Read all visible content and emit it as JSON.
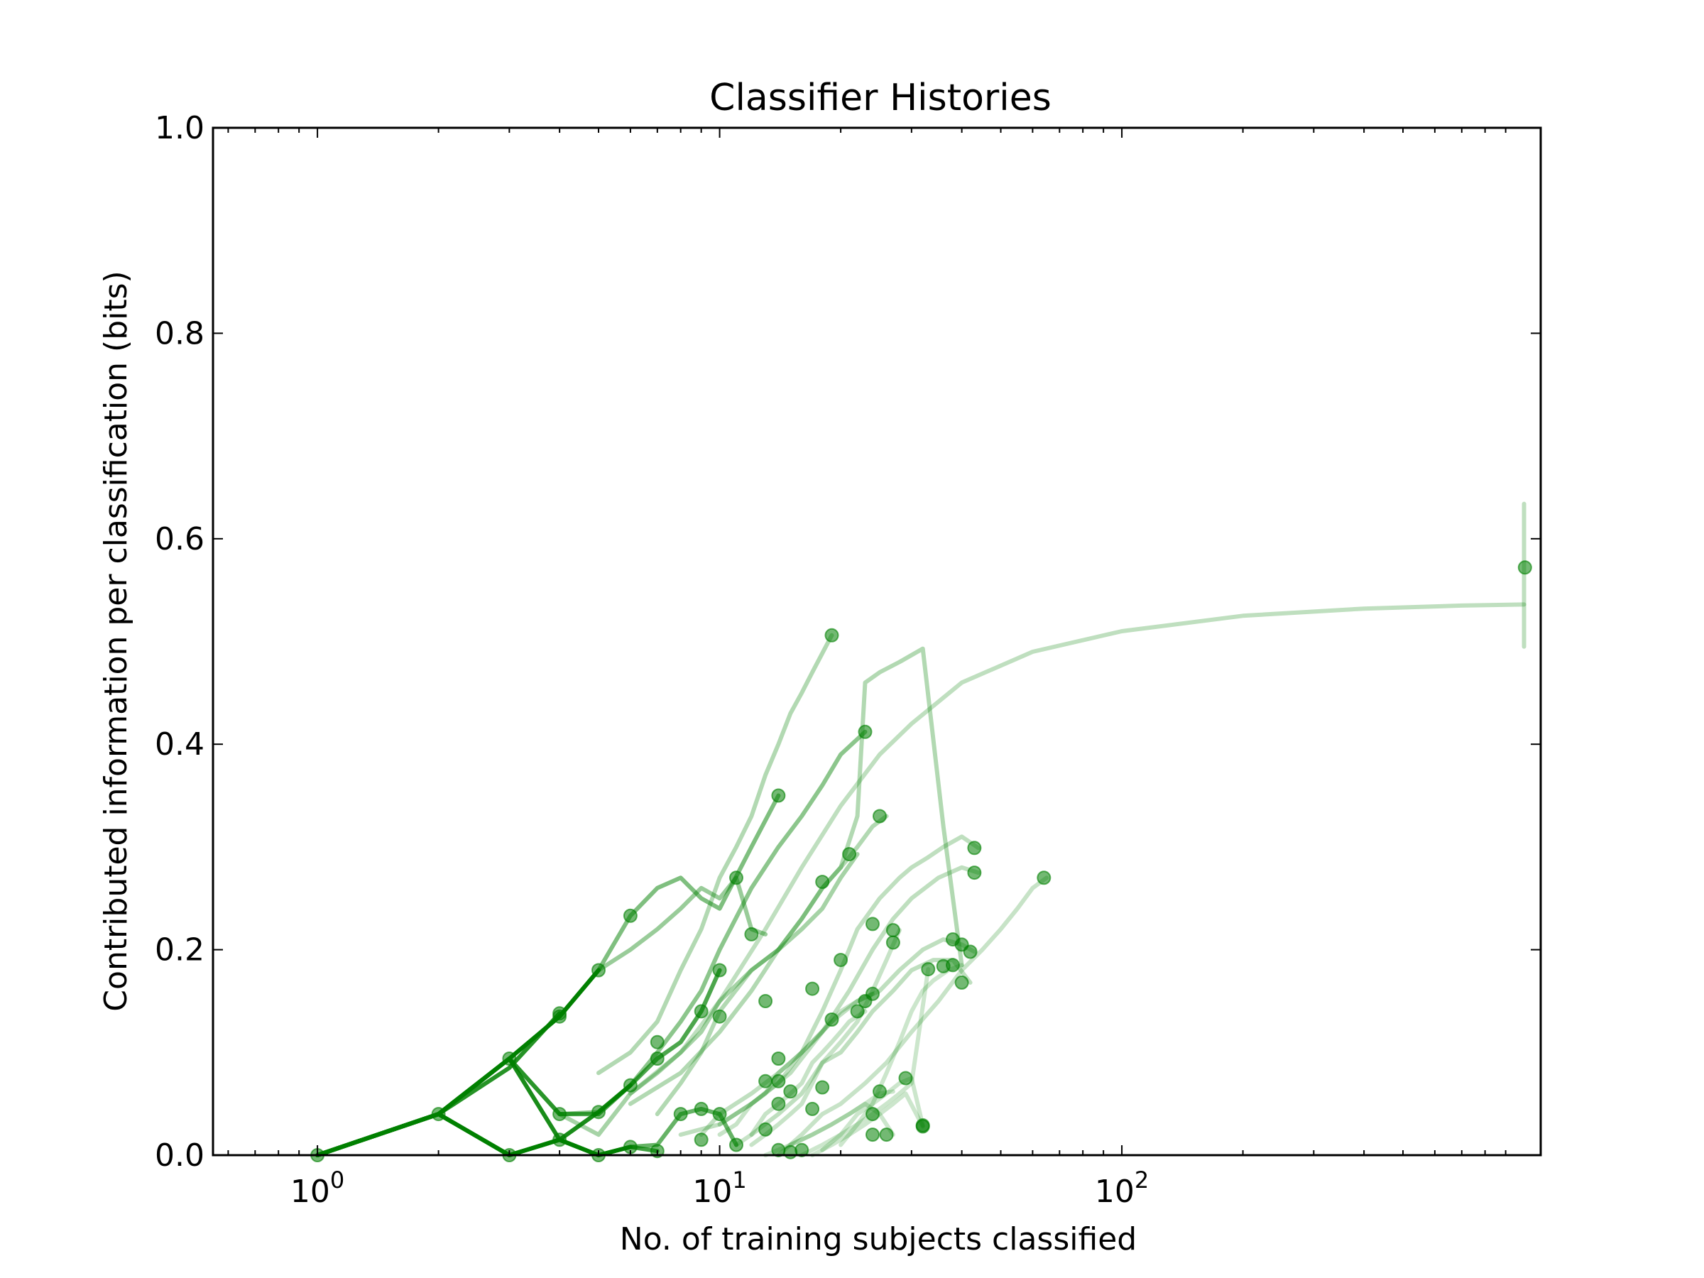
{
  "chart_data": {
    "type": "line",
    "title": "Classifier Histories",
    "xlabel": "No. of training subjects classified",
    "ylabel": "Contributed information per classification (bits)",
    "xscale": "log",
    "xlim": [
      0.55,
      1100
    ],
    "ylim": [
      0,
      1.0
    ],
    "grid": false,
    "color": "#008000",
    "yticks": [
      0.0,
      0.2,
      0.4,
      0.6,
      0.8,
      1.0
    ],
    "ytick_labels": [
      "0.0",
      "0.2",
      "0.4",
      "0.6",
      "0.8",
      "1.0"
    ],
    "xticks": [
      1,
      10,
      100
    ],
    "xtick_labels": [
      {
        "base": "10",
        "exp": "0"
      },
      {
        "base": "10",
        "exp": "1"
      },
      {
        "base": "10",
        "exp": "2"
      }
    ],
    "series": [
      {
        "alpha": 1.0,
        "x": [
          1,
          2,
          3,
          4,
          5
        ],
        "y": [
          0.0,
          0.04,
          0.094,
          0.135,
          0.18
        ]
      },
      {
        "alpha": 1.0,
        "x": [
          1,
          2,
          3,
          4,
          5,
          6
        ],
        "y": [
          0.0,
          0.04,
          0.0,
          0.015,
          0.0,
          0.008
        ]
      },
      {
        "alpha": 0.9,
        "x": [
          1,
          2,
          3,
          4,
          5,
          6
        ],
        "y": [
          0.0,
          0.04,
          0.094,
          0.015,
          0.042,
          0.068
        ]
      },
      {
        "alpha": 0.85,
        "x": [
          1,
          2,
          3,
          4
        ],
        "y": [
          0.0,
          0.04,
          0.085,
          0.138
        ]
      },
      {
        "alpha": 0.75,
        "x": [
          1,
          2,
          3,
          4,
          5,
          6,
          7
        ],
        "y": [
          0.0,
          0.04,
          0.0,
          0.015,
          0.0,
          0.008,
          0.004
        ]
      },
      {
        "alpha": 0.7,
        "x": [
          1,
          2,
          3,
          4,
          5,
          6,
          7,
          8,
          9,
          10
        ],
        "y": [
          0.0,
          0.04,
          0.094,
          0.04,
          0.04,
          0.068,
          0.094,
          0.11,
          0.14,
          0.18
        ]
      },
      {
        "alpha": 0.6,
        "x": [
          1,
          2,
          3,
          4,
          5,
          6,
          7,
          8,
          9,
          10,
          11
        ],
        "y": [
          0.0,
          0.04,
          0.0,
          0.015,
          0.0,
          0.008,
          0.01,
          0.04,
          0.045,
          0.04,
          0.01
        ]
      },
      {
        "alpha": 0.5,
        "x": [
          1,
          2,
          3,
          4,
          5,
          6,
          7,
          8,
          9,
          10,
          12,
          14
        ],
        "y": [
          0.0,
          0.04,
          0.094,
          0.135,
          0.18,
          0.233,
          0.26,
          0.27,
          0.25,
          0.24,
          0.3,
          0.35
        ]
      },
      {
        "alpha": 0.45,
        "x": [
          1,
          2,
          3,
          4,
          5,
          6,
          7,
          8,
          9,
          10,
          12,
          14,
          16,
          18,
          20,
          23
        ],
        "y": [
          0.0,
          0.04,
          0.094,
          0.04,
          0.042,
          0.068,
          0.1,
          0.13,
          0.16,
          0.2,
          0.26,
          0.3,
          0.33,
          0.36,
          0.39,
          0.412
        ]
      },
      {
        "alpha": 0.4,
        "x": [
          4,
          5,
          6,
          7,
          8,
          9,
          10,
          11,
          12,
          13
        ],
        "y": [
          0.135,
          0.18,
          0.2,
          0.22,
          0.24,
          0.26,
          0.25,
          0.27,
          0.22,
          0.215
        ]
      },
      {
        "alpha": 0.35,
        "x": [
          4,
          5,
          6,
          7,
          8,
          9,
          10,
          12,
          14,
          16,
          18,
          20,
          22
        ],
        "y": [
          0.04,
          0.02,
          0.06,
          0.08,
          0.1,
          0.12,
          0.15,
          0.18,
          0.2,
          0.22,
          0.24,
          0.27,
          0.293
        ]
      },
      {
        "alpha": 0.3,
        "x": [
          5,
          6,
          7,
          8,
          9,
          10,
          11,
          12,
          13,
          14,
          15,
          16,
          17,
          19
        ],
        "y": [
          0.08,
          0.1,
          0.13,
          0.18,
          0.22,
          0.27,
          0.3,
          0.33,
          0.37,
          0.4,
          0.43,
          0.45,
          0.47,
          0.506
        ]
      },
      {
        "alpha": 0.3,
        "x": [
          6,
          8,
          10,
          12,
          14,
          16,
          18,
          20,
          22,
          24,
          26
        ],
        "y": [
          0.05,
          0.08,
          0.12,
          0.16,
          0.2,
          0.23,
          0.26,
          0.28,
          0.3,
          0.32,
          0.33
        ]
      },
      {
        "alpha": 0.3,
        "x": [
          7,
          8,
          9,
          10,
          12,
          14,
          16,
          18,
          20,
          22,
          23,
          25,
          28,
          32,
          36,
          40
        ],
        "y": [
          0.04,
          0.07,
          0.1,
          0.14,
          0.18,
          0.2,
          0.23,
          0.26,
          0.28,
          0.33,
          0.46,
          0.47,
          0.48,
          0.493,
          0.32,
          0.185
        ]
      },
      {
        "alpha": 0.25,
        "x": [
          6,
          8,
          10,
          13,
          16,
          20,
          25,
          30,
          40,
          60,
          100,
          200,
          400,
          700,
          1000
        ],
        "y": [
          0.06,
          0.1,
          0.15,
          0.22,
          0.28,
          0.34,
          0.39,
          0.42,
          0.46,
          0.49,
          0.51,
          0.525,
          0.532,
          0.535,
          0.536
        ]
      },
      {
        "alpha": 0.25,
        "x": [
          9,
          10,
          12,
          14,
          16,
          18,
          20,
          22,
          25,
          28,
          30,
          33,
          36,
          40,
          44
        ],
        "y": [
          0.02,
          0.04,
          0.06,
          0.08,
          0.1,
          0.14,
          0.18,
          0.22,
          0.25,
          0.27,
          0.28,
          0.29,
          0.3,
          0.31,
          0.299
        ]
      },
      {
        "alpha": 0.25,
        "x": [
          8,
          10,
          12,
          15,
          18,
          21,
          24,
          27,
          30,
          35,
          40,
          44
        ],
        "y": [
          0.02,
          0.03,
          0.05,
          0.08,
          0.12,
          0.16,
          0.2,
          0.23,
          0.25,
          0.27,
          0.28,
          0.275
        ]
      },
      {
        "alpha": 0.25,
        "x": [
          10,
          12,
          14,
          16,
          19,
          22,
          25,
          28,
          32,
          36,
          40,
          43
        ],
        "y": [
          0.03,
          0.05,
          0.07,
          0.1,
          0.13,
          0.15,
          0.16,
          0.18,
          0.2,
          0.21,
          0.205,
          0.198
        ]
      },
      {
        "alpha": 0.25,
        "x": [
          12,
          14,
          16,
          18,
          20,
          22,
          24,
          27,
          30,
          34,
          38,
          42
        ],
        "y": [
          0.02,
          0.04,
          0.06,
          0.09,
          0.1,
          0.12,
          0.14,
          0.16,
          0.18,
          0.19,
          0.19,
          0.168
        ]
      },
      {
        "alpha": 0.22,
        "x": [
          14,
          16,
          18,
          20,
          23,
          26,
          30,
          35,
          40,
          45,
          50,
          55,
          60,
          65
        ],
        "y": [
          0.0,
          0.02,
          0.04,
          0.05,
          0.07,
          0.09,
          0.12,
          0.15,
          0.18,
          0.2,
          0.22,
          0.24,
          0.26,
          0.27
        ]
      },
      {
        "alpha": 0.22,
        "x": [
          10,
          11,
          12,
          13,
          14,
          15,
          16,
          17,
          18,
          19,
          20,
          22,
          24
        ],
        "y": [
          0.02,
          0.03,
          0.05,
          0.06,
          0.08,
          0.09,
          0.1,
          0.11,
          0.12,
          0.13,
          0.14,
          0.15,
          0.157
        ]
      },
      {
        "alpha": 0.22,
        "x": [
          11,
          12,
          13,
          14,
          15,
          16,
          17,
          18,
          19,
          20,
          21,
          23
        ],
        "y": [
          0.01,
          0.02,
          0.04,
          0.05,
          0.06,
          0.07,
          0.09,
          0.1,
          0.11,
          0.12,
          0.13,
          0.14
        ]
      },
      {
        "alpha": 0.22,
        "x": [
          12,
          13,
          14,
          15,
          16,
          17,
          18,
          20,
          22,
          24,
          26,
          28
        ],
        "y": [
          0.01,
          0.02,
          0.03,
          0.04,
          0.05,
          0.07,
          0.09,
          0.11,
          0.13,
          0.16,
          0.19,
          0.219
        ]
      },
      {
        "alpha": 0.2,
        "x": [
          16,
          18,
          20,
          22,
          24,
          26,
          28,
          30,
          33
        ],
        "y": [
          0.0,
          0.01,
          0.02,
          0.03,
          0.04,
          0.05,
          0.06,
          0.07,
          0.181
        ]
      },
      {
        "alpha": 0.2,
        "x": [
          17,
          19,
          21,
          23,
          25,
          27,
          29,
          32
        ],
        "y": [
          0.0,
          0.01,
          0.02,
          0.03,
          0.04,
          0.05,
          0.06,
          0.028
        ]
      },
      {
        "alpha": 0.2,
        "x": [
          18,
          20,
          22,
          24,
          26,
          28,
          30,
          32
        ],
        "y": [
          0.005,
          0.02,
          0.04,
          0.05,
          0.06,
          0.07,
          0.075,
          0.029
        ]
      },
      {
        "alpha": 0.2,
        "x": [
          15,
          17,
          19,
          21,
          23,
          25,
          27
        ],
        "y": [
          0.01,
          0.02,
          0.03,
          0.04,
          0.05,
          0.06,
          0.062
        ]
      },
      {
        "alpha": 0.2,
        "x": [
          13,
          15,
          17,
          19,
          21,
          23,
          25,
          27
        ],
        "y": [
          0.0,
          0.01,
          0.02,
          0.03,
          0.04,
          0.05,
          0.04,
          0.02
        ]
      },
      {
        "alpha": 0.2,
        "x": [
          20,
          22,
          24,
          26,
          28,
          30,
          32,
          34,
          37,
          40
        ],
        "y": [
          0.01,
          0.03,
          0.05,
          0.08,
          0.11,
          0.14,
          0.16,
          0.17,
          0.18,
          0.185
        ]
      }
    ],
    "endpoints": [
      {
        "x": 2,
        "y": 0.04
      },
      {
        "x": 3,
        "y": 0.094
      },
      {
        "x": 4,
        "y": 0.135
      },
      {
        "x": 4,
        "y": 0.138
      },
      {
        "x": 5,
        "y": 0.18
      },
      {
        "x": 4,
        "y": 0.015
      },
      {
        "x": 6,
        "y": 0.068
      },
      {
        "x": 6,
        "y": 0.008
      },
      {
        "x": 1,
        "y": 0.0
      },
      {
        "x": 3,
        "y": 0.0
      },
      {
        "x": 5,
        "y": 0.0
      },
      {
        "x": 7,
        "y": 0.004
      },
      {
        "x": 4,
        "y": 0.04
      },
      {
        "x": 5,
        "y": 0.042
      },
      {
        "x": 6,
        "y": 0.233
      },
      {
        "x": 7,
        "y": 0.094
      },
      {
        "x": 7,
        "y": 0.11
      },
      {
        "x": 8,
        "y": 0.04
      },
      {
        "x": 9,
        "y": 0.045
      },
      {
        "x": 9,
        "y": 0.015
      },
      {
        "x": 9,
        "y": 0.14
      },
      {
        "x": 10,
        "y": 0.04
      },
      {
        "x": 10,
        "y": 0.135
      },
      {
        "x": 10,
        "y": 0.18
      },
      {
        "x": 11,
        "y": 0.27
      },
      {
        "x": 11,
        "y": 0.01
      },
      {
        "x": 12,
        "y": 0.215
      },
      {
        "x": 13,
        "y": 0.15
      },
      {
        "x": 13,
        "y": 0.072
      },
      {
        "x": 13,
        "y": 0.025
      },
      {
        "x": 14,
        "y": 0.35
      },
      {
        "x": 14,
        "y": 0.094
      },
      {
        "x": 14,
        "y": 0.072
      },
      {
        "x": 14,
        "y": 0.05
      },
      {
        "x": 14,
        "y": 0.005
      },
      {
        "x": 15,
        "y": 0.062
      },
      {
        "x": 15,
        "y": 0.003
      },
      {
        "x": 16,
        "y": 0.005
      },
      {
        "x": 17,
        "y": 0.045
      },
      {
        "x": 17,
        "y": 0.162
      },
      {
        "x": 18,
        "y": 0.266
      },
      {
        "x": 18,
        "y": 0.066
      },
      {
        "x": 19,
        "y": 0.506
      },
      {
        "x": 19,
        "y": 0.132
      },
      {
        "x": 20,
        "y": 0.19
      },
      {
        "x": 21,
        "y": 0.293
      },
      {
        "x": 22,
        "y": 0.14
      },
      {
        "x": 23,
        "y": 0.412
      },
      {
        "x": 23,
        "y": 0.15
      },
      {
        "x": 24,
        "y": 0.157
      },
      {
        "x": 24,
        "y": 0.04
      },
      {
        "x": 24,
        "y": 0.225
      },
      {
        "x": 24,
        "y": 0.02
      },
      {
        "x": 25,
        "y": 0.33
      },
      {
        "x": 25,
        "y": 0.062
      },
      {
        "x": 26,
        "y": 0.02
      },
      {
        "x": 27,
        "y": 0.207
      },
      {
        "x": 27,
        "y": 0.219
      },
      {
        "x": 29,
        "y": 0.075
      },
      {
        "x": 32,
        "y": 0.028
      },
      {
        "x": 32,
        "y": 0.029
      },
      {
        "x": 33,
        "y": 0.181
      },
      {
        "x": 36,
        "y": 0.184
      },
      {
        "x": 38,
        "y": 0.185
      },
      {
        "x": 38,
        "y": 0.21
      },
      {
        "x": 40,
        "y": 0.205
      },
      {
        "x": 40,
        "y": 0.168
      },
      {
        "x": 42,
        "y": 0.198
      },
      {
        "x": 43,
        "y": 0.299
      },
      {
        "x": 43,
        "y": 0.275
      },
      {
        "x": 64,
        "y": 0.27
      },
      {
        "x": 1005,
        "y": 0.572
      }
    ],
    "error_bar": {
      "x": 1000,
      "y": 0.536,
      "low": 0.495,
      "high": 0.634
    }
  }
}
